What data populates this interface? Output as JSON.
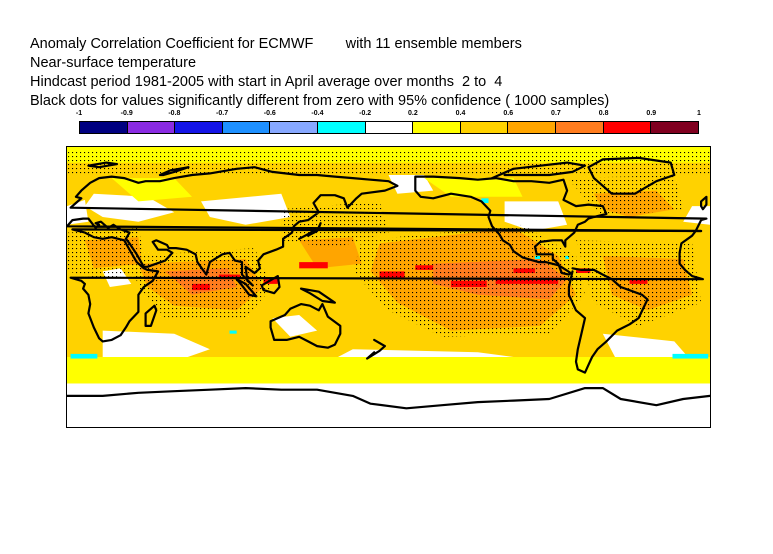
{
  "title": {
    "line1": "Anomaly Correlation Coefficient for ECMWF        with 11 ensemble members",
    "line2": "Near-surface temperature",
    "line3": "Hindcast period 1981-2005 with start in April average over months  2 to  4",
    "line4": "Black dots for values significantly different from zero with 95% confidence ( 1000 samples)"
  },
  "legend": {
    "tick_labels": [
      "-1",
      "-0.9",
      "-0.8",
      "-0.7",
      "-0.6",
      "-0.4",
      "-0.2",
      "0.2",
      "0.4",
      "0.6",
      "0.7",
      "0.8",
      "0.9",
      "1"
    ],
    "colors": [
      "#000080",
      "#8a2be2",
      "#1414e6",
      "#1e90ff",
      "#87a8ff",
      "#00ffff",
      "#ffffff",
      "#ffff00",
      "#ffd200",
      "#ffa500",
      "#ff7c1e",
      "#ff0000",
      "#800020"
    ]
  },
  "map": {
    "projection": "equirectangular",
    "lon_range": [
      0,
      360
    ],
    "lat_range": [
      -90,
      90
    ],
    "colors": {
      "ocean_background": "#ffd200",
      "low_white": "#ffffff",
      "weak_yellow": "#ffff00",
      "moderate_orange": "#ffa500",
      "strong_orange": "#ff7c1e",
      "high_red": "#ff0000",
      "negative_cyan": "#00ffff",
      "coastline": "#000000",
      "significance_dots": "#000000"
    }
  }
}
